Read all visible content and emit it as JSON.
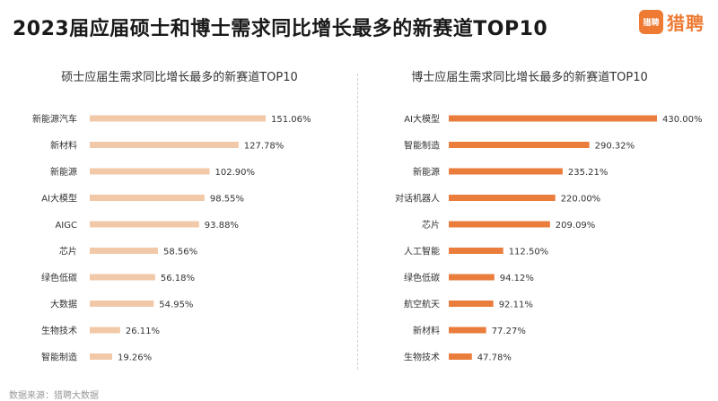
{
  "page": {
    "title": "2023届应届硕士和博士需求同比增长最多的新赛道TOP10",
    "logo_badge": "猎聘",
    "logo_text": "猎聘",
    "source": "数据来源：猎聘大数据"
  },
  "colors": {
    "left_bar": "#f2c9a8",
    "right_bar": "#ea7d3c",
    "brand": "#ee7a33"
  },
  "chart_data": [
    {
      "type": "bar",
      "orientation": "horizontal",
      "title": "硕士应届生需求同比增长最多的新赛道TOP10",
      "categories": [
        "新能源汽车",
        "新材料",
        "新能源",
        "AI大模型",
        "AIGC",
        "芯片",
        "绿色低碳",
        "大数据",
        "生物技术",
        "智能制造"
      ],
      "values": [
        151.06,
        127.78,
        102.9,
        98.55,
        93.88,
        58.56,
        56.18,
        54.95,
        26.11,
        19.26
      ],
      "value_labels": [
        "151.06%",
        "127.78%",
        "102.90%",
        "98.55%",
        "93.88%",
        "58.56%",
        "56.18%",
        "54.95%",
        "26.11%",
        "19.26%"
      ],
      "unit": "%",
      "grid": false,
      "legend": false
    },
    {
      "type": "bar",
      "orientation": "horizontal",
      "title": "博士应届生需求同比增长最多的新赛道TOP10",
      "categories": [
        "AI大模型",
        "智能制造",
        "新能源",
        "对话机器人",
        "芯片",
        "人工智能",
        "绿色低碳",
        "航空航天",
        "新材料",
        "生物技术"
      ],
      "values": [
        430.0,
        290.32,
        235.21,
        220.0,
        209.09,
        112.5,
        94.12,
        92.11,
        77.27,
        47.78
      ],
      "value_labels": [
        "430.00%",
        "290.32%",
        "235.21%",
        "220.00%",
        "209.09%",
        "112.50%",
        "94.12%",
        "92.11%",
        "77.27%",
        "47.78%"
      ],
      "unit": "%",
      "grid": false,
      "legend": false
    }
  ]
}
